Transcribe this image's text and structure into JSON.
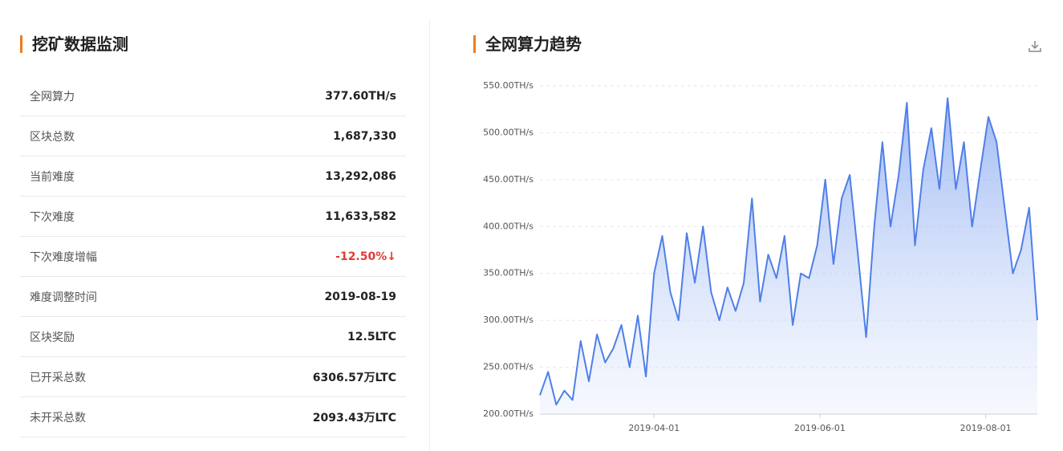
{
  "mining_panel": {
    "title": "挖矿数据监测",
    "rows": [
      {
        "label": "全网算力",
        "value": "377.60TH/s"
      },
      {
        "label": "区块总数",
        "value": "1,687,330"
      },
      {
        "label": "当前难度",
        "value": "13,292,086"
      },
      {
        "label": "下次难度",
        "value": "11,633,582"
      },
      {
        "label": "下次难度增幅",
        "value": "-12.50%↓"
      },
      {
        "label": "难度调整时间",
        "value": "2019-08-19"
      },
      {
        "label": "区块奖励",
        "value": "12.5LTC"
      },
      {
        "label": "已开采总数",
        "value": "6306.57万LTC"
      },
      {
        "label": "未开采总数",
        "value": "2093.43万LTC"
      }
    ]
  },
  "chart_data": {
    "type": "area",
    "title": "全网算力趋势",
    "color": "#4f7fe8",
    "grid": true,
    "x": [
      "2019-02-18",
      "2019-02-21",
      "2019-02-24",
      "2019-02-27",
      "2019-03-02",
      "2019-03-05",
      "2019-03-08",
      "2019-03-11",
      "2019-03-14",
      "2019-03-17",
      "2019-03-20",
      "2019-03-23",
      "2019-03-26",
      "2019-03-29",
      "2019-04-01",
      "2019-04-04",
      "2019-04-07",
      "2019-04-10",
      "2019-04-13",
      "2019-04-16",
      "2019-04-19",
      "2019-04-22",
      "2019-04-25",
      "2019-04-28",
      "2019-05-01",
      "2019-05-04",
      "2019-05-07",
      "2019-05-10",
      "2019-05-13",
      "2019-05-16",
      "2019-05-19",
      "2019-05-22",
      "2019-05-25",
      "2019-05-28",
      "2019-05-31",
      "2019-06-03",
      "2019-06-06",
      "2019-06-09",
      "2019-06-12",
      "2019-06-15",
      "2019-06-18",
      "2019-06-21",
      "2019-06-24",
      "2019-06-27",
      "2019-06-30",
      "2019-07-03",
      "2019-07-06",
      "2019-07-09",
      "2019-07-12",
      "2019-07-15",
      "2019-07-18",
      "2019-07-21",
      "2019-07-24",
      "2019-07-27",
      "2019-07-30",
      "2019-08-02",
      "2019-08-05",
      "2019-08-08",
      "2019-08-11",
      "2019-08-14",
      "2019-08-17",
      "2019-08-20"
    ],
    "values": [
      220,
      245,
      210,
      225,
      215,
      278,
      235,
      285,
      255,
      270,
      295,
      250,
      305,
      240,
      350,
      390,
      330,
      300,
      393,
      340,
      400,
      330,
      300,
      335,
      310,
      340,
      430,
      320,
      370,
      345,
      390,
      295,
      350,
      345,
      380,
      450,
      360,
      430,
      455,
      370,
      282,
      400,
      490,
      400,
      455,
      532,
      380,
      460,
      505,
      440,
      537,
      440,
      490,
      400,
      460,
      517,
      490,
      420,
      350,
      375,
      420,
      300
    ],
    "xlim": [
      "2019-02-18",
      "2019-08-20"
    ],
    "xticks": [
      "2019-04-01",
      "2019-06-01",
      "2019-08-01"
    ],
    "ylim": [
      200,
      550
    ],
    "yticks": [
      {
        "value": 200,
        "label": "200.00TH/s"
      },
      {
        "value": 250,
        "label": "250.00TH/s"
      },
      {
        "value": 300,
        "label": "300.00TH/s"
      },
      {
        "value": 350,
        "label": "350.00TH/s"
      },
      {
        "value": 400,
        "label": "400.00TH/s"
      },
      {
        "value": 450,
        "label": "450.00TH/s"
      },
      {
        "value": 500,
        "label": "500.00TH/s"
      },
      {
        "value": 550,
        "label": "550.00TH/s"
      }
    ]
  }
}
